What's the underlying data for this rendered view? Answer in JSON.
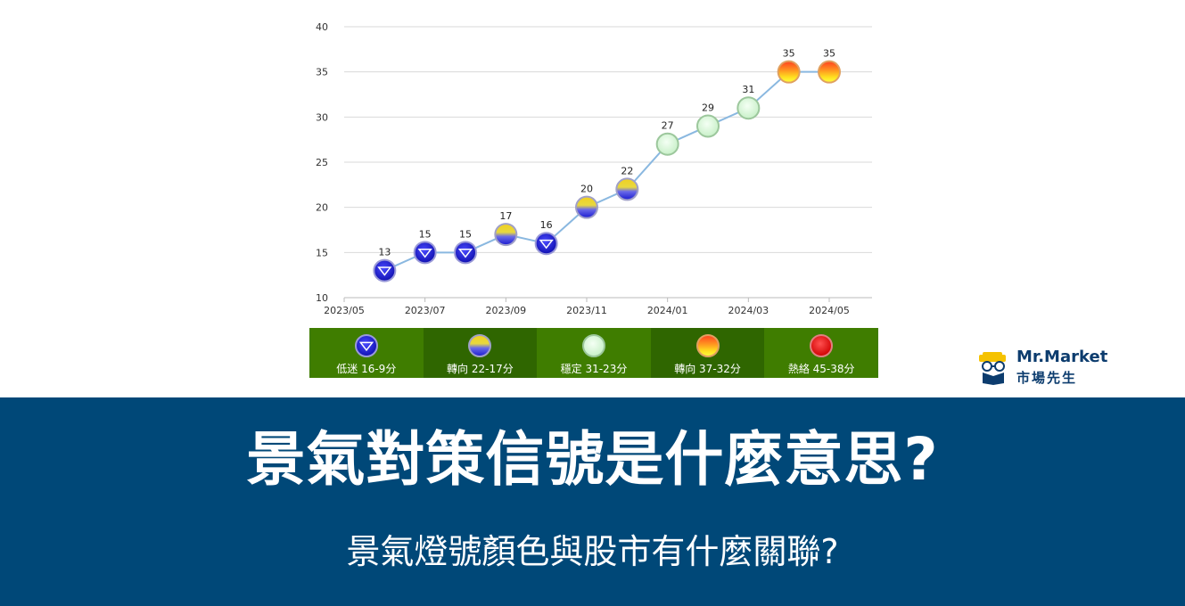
{
  "chart_data": {
    "type": "line",
    "x": [
      "2023/06",
      "2023/07",
      "2023/08",
      "2023/09",
      "2023/10",
      "2023/11",
      "2023/12",
      "2024/01",
      "2024/02",
      "2024/03",
      "2024/04",
      "2024/05"
    ],
    "series": [
      {
        "values": [
          13,
          15,
          15,
          17,
          16,
          20,
          22,
          27,
          29,
          31,
          35,
          35
        ],
        "signals": [
          "blue",
          "blue",
          "blue",
          "yellow-blue",
          "blue",
          "yellow-blue",
          "yellow-blue",
          "green",
          "green",
          "green",
          "yellow-red",
          "yellow-red"
        ]
      }
    ],
    "x_tick_labels": [
      "2023/05",
      "2023/07",
      "2023/09",
      "2023/11",
      "2024/01",
      "2024/03",
      "2024/05"
    ],
    "y_ticks": [
      10,
      15,
      20,
      25,
      30,
      35,
      40
    ],
    "ylim": [
      10,
      40
    ],
    "xlim": [
      "2023/05",
      "2024/05"
    ],
    "grid": true,
    "line_color": "#8ab8e0",
    "legend_position": "bottom",
    "legend": [
      {
        "key": "blue",
        "label": "低迷 16-9分"
      },
      {
        "key": "yellow-blue",
        "label": "轉向 22-17分"
      },
      {
        "key": "green",
        "label": "穩定 31-23分"
      },
      {
        "key": "yellow-red",
        "label": "轉向 37-32分"
      },
      {
        "key": "red",
        "label": "熱絡 45-38分"
      }
    ]
  },
  "brand": {
    "name_en": "Mr.Market",
    "name_zh": "市場先生",
    "color": "#0c3c6e",
    "accent": "#f5c200",
    "icon": "glasses-logo-icon"
  },
  "banner": {
    "title": "景氣對策信號是什麼意思?",
    "subtitle": "景氣燈號顏色與股市有什麼關聯?",
    "background": "#004878"
  }
}
